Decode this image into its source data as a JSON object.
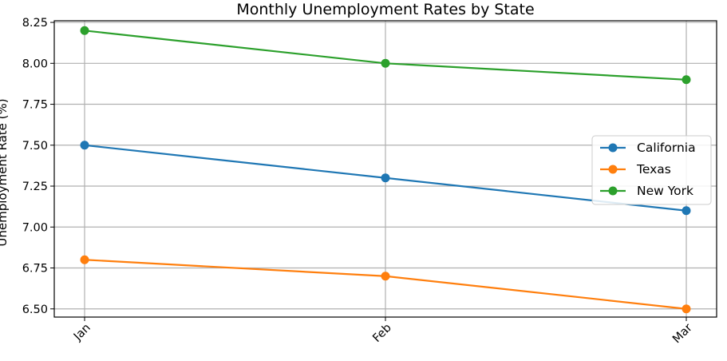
{
  "chart_data": {
    "type": "line",
    "title": "Monthly Unemployment Rates by State",
    "xlabel": "",
    "ylabel": "Unemployment Rate (%)",
    "categories": [
      "Jan",
      "Feb",
      "Mar"
    ],
    "ylim": [
      6.45,
      8.26
    ],
    "yticks": [
      "6.50",
      "6.75",
      "7.00",
      "7.25",
      "7.50",
      "7.75",
      "8.00",
      "8.25"
    ],
    "grid": true,
    "legend_position": "center-right",
    "series": [
      {
        "name": "California",
        "values": [
          7.5,
          7.3,
          7.1
        ],
        "color": "#1f77b4"
      },
      {
        "name": "Texas",
        "values": [
          6.8,
          6.7,
          6.5
        ],
        "color": "#ff7f0e"
      },
      {
        "name": "New York",
        "values": [
          8.2,
          8.0,
          7.9
        ],
        "color": "#2ca02c"
      }
    ]
  }
}
